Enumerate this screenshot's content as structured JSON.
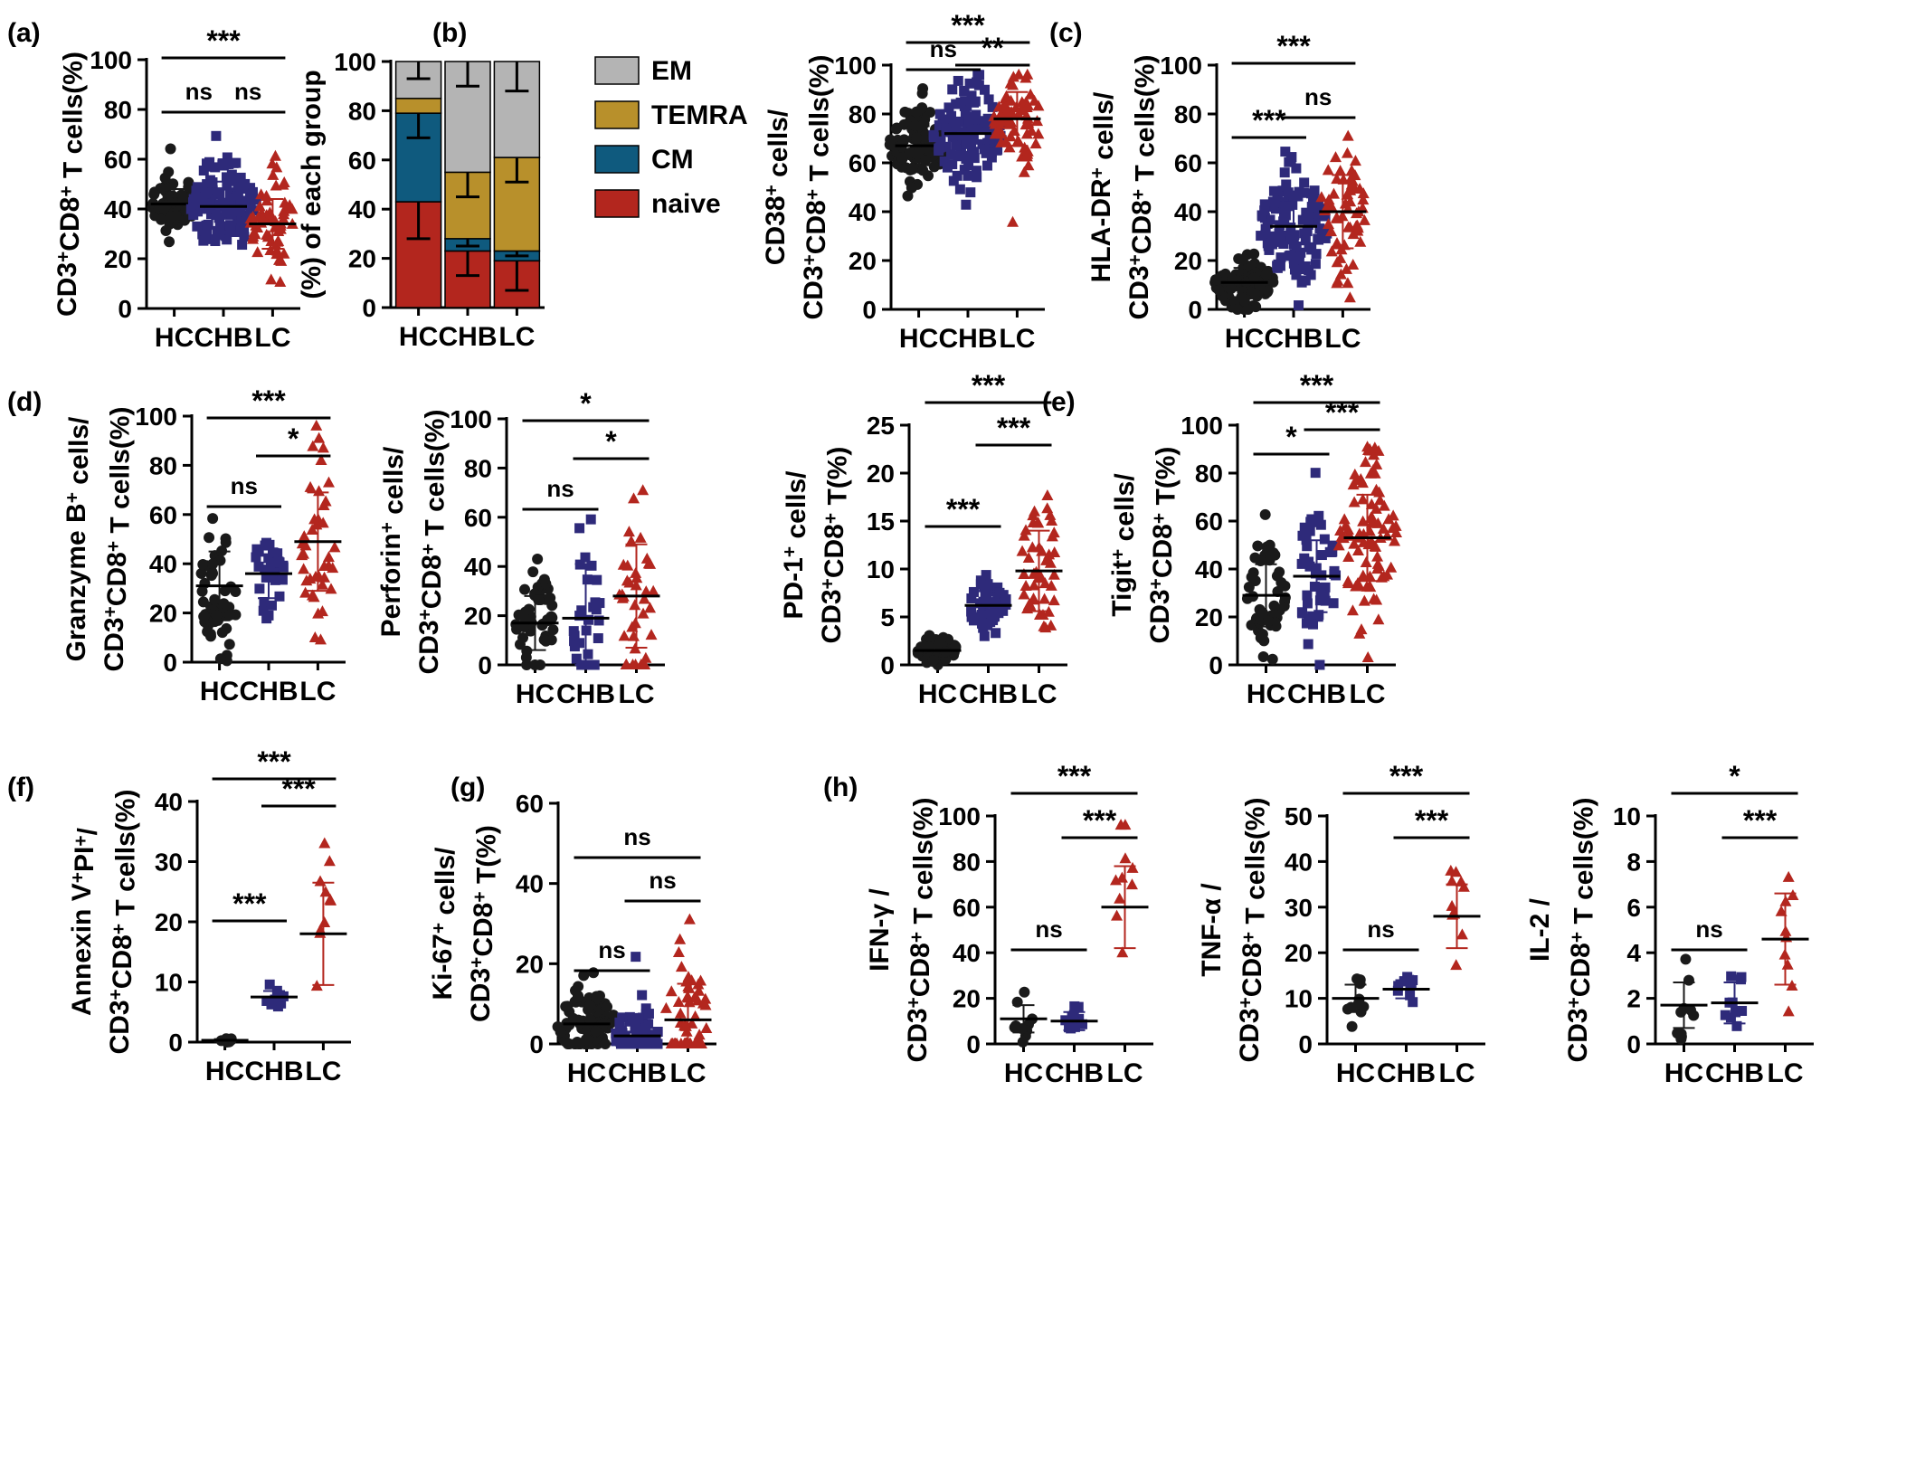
{
  "colors": {
    "HC": "#1a1a1a",
    "CHB": "#2e2a7a",
    "LC": "#b3261e"
  },
  "stack_colors": {
    "naive": "#b3261e",
    "CM": "#0f5a7e",
    "TEMRA": "#b8902b",
    "EM": "#b4b4b4"
  },
  "categories": [
    "HC",
    "CHB",
    "LC"
  ],
  "chart_data": [
    {
      "panel": "a",
      "panel_label": "(a)",
      "type": "scatter",
      "ylabel": [
        "CD3+CD8+ T cells(%)"
      ],
      "ylim": [
        0,
        100
      ],
      "yticks": [
        0,
        20,
        40,
        60,
        80,
        100
      ],
      "means": [
        42,
        41,
        34
      ],
      "sds": [
        6,
        10,
        10
      ],
      "n": [
        70,
        130,
        60
      ],
      "brackets": [
        {
          "from": 0,
          "to": 2,
          "label": "***"
        },
        {
          "from": 0,
          "to": 1,
          "label": "ns"
        },
        {
          "from": 1,
          "to": 2,
          "label": "ns"
        }
      ]
    },
    {
      "panel": "b",
      "panel_label": "(b)",
      "type": "stacked-bar",
      "ylabel": [
        "(%) of each group"
      ],
      "ylim": [
        0,
        100
      ],
      "yticks": [
        0,
        20,
        40,
        60,
        80,
        100
      ],
      "legend": [
        "EM",
        "TEMRA",
        "CM",
        "naive"
      ],
      "series": [
        {
          "name": "naive",
          "values": [
            43,
            23,
            19
          ],
          "errors": [
            15,
            10,
            12
          ]
        },
        {
          "name": "CM",
          "values": [
            36,
            5,
            4
          ],
          "errors": [
            10,
            3,
            2
          ]
        },
        {
          "name": "TEMRA",
          "values": [
            6,
            27,
            38
          ],
          "errors": [
            0,
            10,
            10
          ]
        },
        {
          "name": "EM",
          "values": [
            15,
            45,
            39
          ],
          "errors": [
            7,
            10,
            12
          ]
        }
      ]
    },
    {
      "panel": "c1",
      "panel_label": "(c)",
      "type": "scatter",
      "ylabel": [
        "CD38+ cells/",
        "CD3+CD8+ T cells(%)"
      ],
      "ylim": [
        0,
        100
      ],
      "yticks": [
        0,
        20,
        40,
        60,
        80,
        100
      ],
      "means": [
        67,
        72,
        78
      ],
      "sds": [
        8,
        11,
        11
      ],
      "n": [
        90,
        120,
        70
      ],
      "brackets": [
        {
          "from": 0,
          "to": 2,
          "label": "***"
        },
        {
          "from": 0,
          "to": 1,
          "label": "ns"
        },
        {
          "from": 1,
          "to": 2,
          "label": "**"
        }
      ]
    },
    {
      "panel": "c2",
      "panel_label": "",
      "type": "scatter",
      "ylabel": [
        "HLA-DR+ cells/",
        "CD3+CD8+ T cells(%)"
      ],
      "ylim": [
        0,
        100
      ],
      "yticks": [
        0,
        20,
        40,
        60,
        80,
        100
      ],
      "means": [
        11,
        34,
        40
      ],
      "sds": [
        6,
        13,
        15
      ],
      "n": [
        90,
        120,
        60
      ],
      "brackets": [
        {
          "from": 0,
          "to": 2,
          "label": "***"
        },
        {
          "from": 0,
          "to": 1,
          "label": "***"
        },
        {
          "from": 1,
          "to": 2,
          "label": "ns"
        }
      ]
    },
    {
      "panel": "d1",
      "panel_label": "(d)",
      "type": "scatter",
      "ylabel": [
        "Granzyme B+ cells/",
        "CD3+CD8+ T cells(%)"
      ],
      "ylim": [
        0,
        100
      ],
      "yticks": [
        0,
        20,
        40,
        60,
        80,
        100
      ],
      "means": [
        31,
        36,
        49
      ],
      "sds": [
        14,
        10,
        20
      ],
      "n": [
        50,
        30,
        40
      ],
      "brackets": [
        {
          "from": 0,
          "to": 2,
          "label": "***"
        },
        {
          "from": 0,
          "to": 1,
          "label": "ns"
        },
        {
          "from": 1,
          "to": 2,
          "label": "*"
        }
      ]
    },
    {
      "panel": "d2",
      "panel_label": "",
      "type": "scatter",
      "ylabel": [
        "Perforin+ cells/",
        "CD3+CD8+ T cells(%)"
      ],
      "ylim": [
        0,
        100
      ],
      "yticks": [
        0,
        20,
        40,
        60,
        80,
        100
      ],
      "means": [
        17,
        19,
        28
      ],
      "sds": [
        11,
        22,
        21
      ],
      "n": [
        50,
        30,
        40
      ],
      "brackets": [
        {
          "from": 0,
          "to": 2,
          "label": "*"
        },
        {
          "from": 0,
          "to": 1,
          "label": "ns"
        },
        {
          "from": 1,
          "to": 2,
          "label": "*"
        }
      ]
    },
    {
      "panel": "e1",
      "panel_label": "(e)",
      "type": "scatter",
      "ylabel": [
        "PD-1+ cells/",
        "CD3+CD8+ T(%)"
      ],
      "ylim": [
        0,
        25
      ],
      "yticks": [
        0,
        5,
        10,
        15,
        20,
        25
      ],
      "means": [
        1.5,
        6.2,
        9.8
      ],
      "sds": [
        0.8,
        1.5,
        4.2
      ],
      "n": [
        50,
        50,
        50
      ],
      "brackets": [
        {
          "from": 0,
          "to": 2,
          "label": "***"
        },
        {
          "from": 0,
          "to": 1,
          "label": "***"
        },
        {
          "from": 1,
          "to": 2,
          "label": "***"
        }
      ]
    },
    {
      "panel": "e2",
      "panel_label": "",
      "type": "scatter",
      "ylabel": [
        "Tigit+ cells/",
        "CD3+CD8+ T(%)"
      ],
      "ylim": [
        0,
        100
      ],
      "yticks": [
        0,
        20,
        40,
        60,
        80,
        100
      ],
      "means": [
        29,
        37,
        53
      ],
      "sds": [
        13,
        15,
        18
      ],
      "n": [
        50,
        50,
        90
      ],
      "brackets": [
        {
          "from": 0,
          "to": 2,
          "label": "***"
        },
        {
          "from": 0,
          "to": 1,
          "label": "*"
        },
        {
          "from": 1,
          "to": 2,
          "label": "***"
        }
      ]
    },
    {
      "panel": "f",
      "panel_label": "(f)",
      "type": "scatter",
      "ylabel": [
        "Annexin V+PI+/",
        "CD3+CD8+ T cells(%)"
      ],
      "ylim": [
        0,
        40
      ],
      "yticks": [
        0,
        10,
        20,
        30,
        40
      ],
      "means": [
        0.3,
        7.5,
        18
      ],
      "sds": [
        0.2,
        1,
        8.5
      ],
      "n": [
        10,
        10,
        10
      ],
      "brackets": [
        {
          "from": 0,
          "to": 2,
          "label": "***"
        },
        {
          "from": 0,
          "to": 1,
          "label": "***"
        },
        {
          "from": 1,
          "to": 2,
          "label": "***"
        }
      ]
    },
    {
      "panel": "g",
      "panel_label": "(g)",
      "type": "scatter",
      "ylabel": [
        "Ki-67+ cells/",
        "CD3+CD8+ T(%)"
      ],
      "ylim": [
        0,
        60
      ],
      "yticks": [
        0,
        20,
        40,
        60
      ],
      "means": [
        5,
        2,
        6
      ],
      "sds": [
        5,
        4,
        9
      ],
      "n": [
        90,
        60,
        60
      ],
      "brackets": [
        {
          "from": 0,
          "to": 2,
          "label": "ns"
        },
        {
          "from": 0,
          "to": 1,
          "label": "ns"
        },
        {
          "from": 1,
          "to": 2,
          "label": "ns"
        }
      ]
    },
    {
      "panel": "h1",
      "panel_label": "(h)",
      "type": "scatter",
      "ylabel": [
        "IFN-γ /",
        "CD3+CD8+ T cells(%)"
      ],
      "ylim": [
        0,
        100
      ],
      "yticks": [
        0,
        20,
        40,
        60,
        80,
        100
      ],
      "means": [
        11,
        10,
        60
      ],
      "sds": [
        6,
        4,
        18
      ],
      "n": [
        10,
        10,
        10
      ],
      "brackets": [
        {
          "from": 0,
          "to": 2,
          "label": "***"
        },
        {
          "from": 0,
          "to": 1,
          "label": "ns"
        },
        {
          "from": 1,
          "to": 2,
          "label": "***"
        }
      ]
    },
    {
      "panel": "h2",
      "panel_label": "",
      "type": "scatter",
      "ylabel": [
        "TNF-α /",
        "CD3+CD8+ T cells(%)"
      ],
      "ylim": [
        0,
        50
      ],
      "yticks": [
        0,
        10,
        20,
        30,
        40,
        50
      ],
      "means": [
        10,
        12,
        28
      ],
      "sds": [
        3,
        2,
        7
      ],
      "n": [
        10,
        10,
        10
      ],
      "brackets": [
        {
          "from": 0,
          "to": 2,
          "label": "***"
        },
        {
          "from": 0,
          "to": 1,
          "label": "ns"
        },
        {
          "from": 1,
          "to": 2,
          "label": "***"
        }
      ]
    },
    {
      "panel": "h3",
      "panel_label": "",
      "type": "scatter",
      "ylabel": [
        "IL-2 /",
        "CD3+CD8+ T cells(%)"
      ],
      "ylim": [
        0,
        10
      ],
      "yticks": [
        0,
        2,
        4,
        6,
        8,
        10
      ],
      "means": [
        1.7,
        1.8,
        4.6
      ],
      "sds": [
        1,
        0.9,
        2
      ],
      "n": [
        10,
        10,
        10
      ],
      "brackets": [
        {
          "from": 0,
          "to": 2,
          "label": "*"
        },
        {
          "from": 0,
          "to": 1,
          "label": "ns"
        },
        {
          "from": 1,
          "to": 2,
          "label": "***"
        }
      ]
    }
  ]
}
